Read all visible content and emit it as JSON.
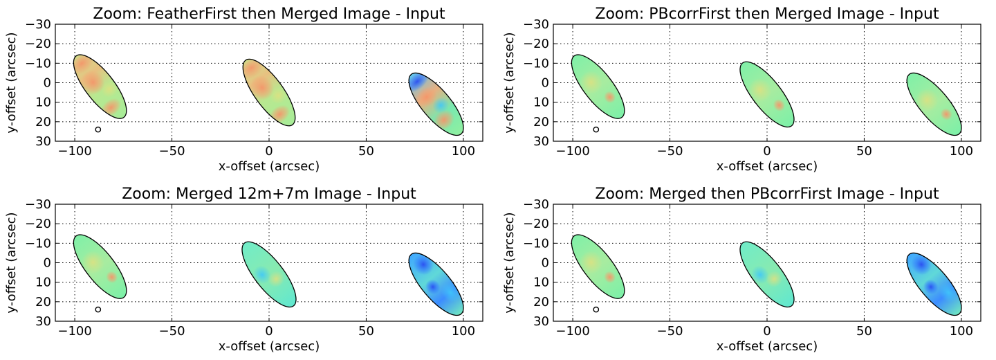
{
  "chart_data": [
    {
      "type": "heatmap",
      "title": "Zoom: FeatherFirst then Merged Image - Input",
      "xlabel": "x-offset (arcsec)",
      "ylabel": "y-offset (arcsec)",
      "xlim": [
        -110,
        110
      ],
      "ylim": [
        30,
        -30
      ],
      "y_inverted": true,
      "grid": true,
      "x_ticks": [
        -100,
        -50,
        0,
        50,
        100
      ],
      "x_tick_labels": [
        "−100",
        "−50",
        "0",
        "50",
        "100"
      ],
      "y_ticks": [
        -30,
        -20,
        -10,
        0,
        10,
        20,
        30
      ],
      "y_tick_labels": [
        "−30",
        "−20",
        "−10",
        "0",
        "10",
        "20",
        "30"
      ],
      "ellipses": [
        {
          "cx": -87,
          "cy": 2,
          "major": 40,
          "minor": 14,
          "angle_deg": 52,
          "dominant": "orange"
        },
        {
          "cx": 0,
          "cy": 5,
          "major": 41,
          "minor": 14,
          "angle_deg": 54,
          "dominant": "orange"
        },
        {
          "cx": 86,
          "cy": 11,
          "major": 40,
          "minor": 14,
          "angle_deg": 50,
          "dominant": "blue-green"
        }
      ],
      "beam_marker": {
        "x": -88,
        "y": 24
      }
    },
    {
      "type": "heatmap",
      "title": "Zoom: PBcorrFirst then Merged Image - Input",
      "xlabel": "x-offset (arcsec)",
      "ylabel": "y-offset (arcsec)",
      "xlim": [
        -110,
        110
      ],
      "ylim": [
        30,
        -30
      ],
      "y_inverted": true,
      "grid": true,
      "x_ticks": [
        -100,
        -50,
        0,
        50,
        100
      ],
      "x_tick_labels": [
        "−100",
        "−50",
        "0",
        "50",
        "100"
      ],
      "y_ticks": [
        -30,
        -20,
        -10,
        0,
        10,
        20,
        30
      ],
      "y_tick_labels": [
        "−30",
        "−20",
        "−10",
        "0",
        "10",
        "20",
        "30"
      ],
      "ellipses": [
        {
          "cx": -87,
          "cy": 2,
          "major": 40,
          "minor": 14,
          "angle_deg": 52,
          "dominant": "green"
        },
        {
          "cx": 0,
          "cy": 6,
          "major": 41,
          "minor": 14,
          "angle_deg": 52,
          "dominant": "green"
        },
        {
          "cx": 86,
          "cy": 11,
          "major": 40,
          "minor": 14,
          "angle_deg": 50,
          "dominant": "green"
        }
      ],
      "beam_marker": {
        "x": -88,
        "y": 24
      }
    },
    {
      "type": "heatmap",
      "title": "Zoom: Merged 12m+7m Image - Input",
      "xlabel": "x-offset (arcsec)",
      "ylabel": "y-offset (arcsec)",
      "xlim": [
        -110,
        110
      ],
      "ylim": [
        30,
        -30
      ],
      "y_inverted": true,
      "grid": true,
      "x_ticks": [
        -100,
        -50,
        0,
        50,
        100
      ],
      "x_tick_labels": [
        "−100",
        "−50",
        "0",
        "50",
        "100"
      ],
      "y_ticks": [
        -30,
        -20,
        -10,
        0,
        10,
        20,
        30
      ],
      "y_tick_labels": [
        "−30",
        "−20",
        "−10",
        "0",
        "10",
        "20",
        "30"
      ],
      "ellipses": [
        {
          "cx": -87,
          "cy": 2,
          "major": 40,
          "minor": 14,
          "angle_deg": 52,
          "dominant": "green"
        },
        {
          "cx": 0,
          "cy": 6,
          "major": 41,
          "minor": 14,
          "angle_deg": 52,
          "dominant": "cyan"
        },
        {
          "cx": 86,
          "cy": 11,
          "major": 40,
          "minor": 14,
          "angle_deg": 50,
          "dominant": "blue"
        }
      ],
      "beam_marker": {
        "x": -88,
        "y": 24
      }
    },
    {
      "type": "heatmap",
      "title": "Zoom: Merged then PBcorrFirst Image - Input",
      "xlabel": "x-offset (arcsec)",
      "ylabel": "y-offset (arcsec)",
      "xlim": [
        -110,
        110
      ],
      "ylim": [
        30,
        -30
      ],
      "y_inverted": true,
      "grid": true,
      "x_ticks": [
        -100,
        -50,
        0,
        50,
        100
      ],
      "x_tick_labels": [
        "−100",
        "−50",
        "0",
        "50",
        "100"
      ],
      "y_ticks": [
        -30,
        -20,
        -10,
        0,
        10,
        20,
        30
      ],
      "y_tick_labels": [
        "−30",
        "−20",
        "−10",
        "0",
        "10",
        "20",
        "30"
      ],
      "ellipses": [
        {
          "cx": -87,
          "cy": 2,
          "major": 40,
          "minor": 14,
          "angle_deg": 52,
          "dominant": "green"
        },
        {
          "cx": 0,
          "cy": 6,
          "major": 41,
          "minor": 14,
          "angle_deg": 52,
          "dominant": "cyan"
        },
        {
          "cx": 86,
          "cy": 11,
          "major": 40,
          "minor": 14,
          "angle_deg": 50,
          "dominant": "blue"
        }
      ],
      "beam_marker": {
        "x": -88,
        "y": 24
      }
    }
  ],
  "colors": {
    "orange": "#f5a060",
    "green": "#7cf0a0",
    "cyan": "#5ee8d8",
    "blue": "#2f7bff",
    "deep_blue": "#2040e0",
    "grid": "#000000"
  }
}
